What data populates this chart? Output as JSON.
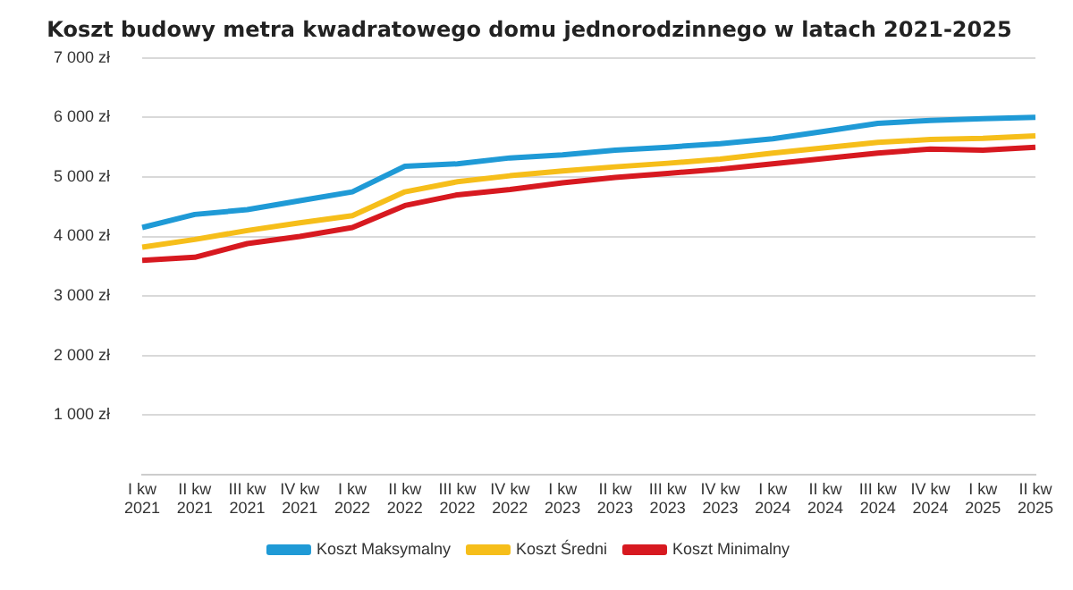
{
  "chart_data": {
    "type": "line",
    "title": "Koszt budowy metra kwadratowego domu jednorodzinnego w latach 2021-2025",
    "categories": [
      "I kw 2021",
      "II kw 2021",
      "III kw 2021",
      "IV kw 2021",
      "I kw 2022",
      "II kw 2022",
      "III kw 2022",
      "IV kw 2022",
      "I kw 2023",
      "II kw 2023",
      "III kw 2023",
      "IV kw 2023",
      "I kw 2024",
      "II kw 2024",
      "III kw 2024",
      "IV kw 2024",
      "I kw 2025",
      "II kw 2025"
    ],
    "series": [
      {
        "name": "Koszt Maksymalny",
        "color": "#1f9ad6",
        "values": [
          4150,
          4370,
          4450,
          4600,
          4750,
          5180,
          5220,
          5320,
          5370,
          5450,
          5500,
          5560,
          5640,
          5770,
          5900,
          5950,
          5980,
          6000
        ]
      },
      {
        "name": "Koszt Średni",
        "color": "#f6be1a",
        "values": [
          3820,
          3950,
          4100,
          4230,
          4350,
          4750,
          4920,
          5020,
          5100,
          5170,
          5230,
          5300,
          5400,
          5490,
          5580,
          5630,
          5650,
          5690
        ]
      },
      {
        "name": "Koszt Minimalny",
        "color": "#d71920",
        "values": [
          3600,
          3650,
          3880,
          4000,
          4150,
          4520,
          4700,
          4790,
          4900,
          4990,
          5060,
          5130,
          5220,
          5310,
          5400,
          5470,
          5450,
          5500
        ]
      }
    ],
    "ylim": [
      0,
      7000
    ],
    "yticks": [
      {
        "value": 0,
        "label": null
      },
      {
        "value": 1000,
        "label": "1 000 zł"
      },
      {
        "value": 2000,
        "label": "2 000 zł"
      },
      {
        "value": 3000,
        "label": "3 000 zł"
      },
      {
        "value": 4000,
        "label": "4 000 zł"
      },
      {
        "value": 5000,
        "label": "5 000 zł"
      },
      {
        "value": 6000,
        "label": "6 000 zł"
      },
      {
        "value": 7000,
        "label": "7 000 zł"
      }
    ],
    "grid": "y",
    "legend": "bottom",
    "marker": "none",
    "line_style": "solid"
  }
}
